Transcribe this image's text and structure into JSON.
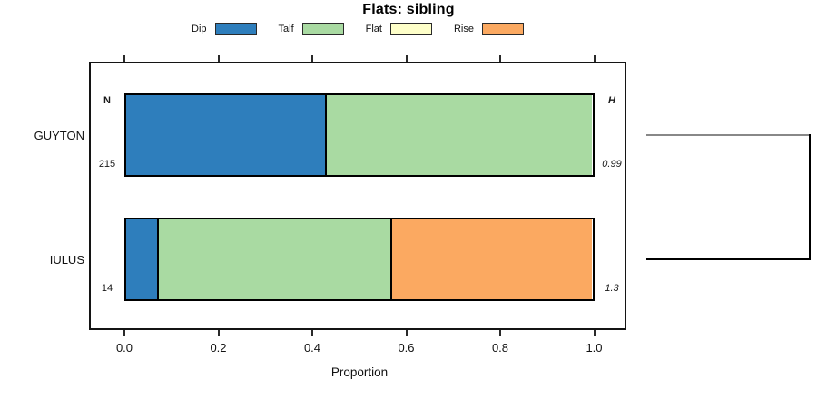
{
  "title": "Flats: sibling",
  "x_axis": {
    "label": "Proportion",
    "ticks": [
      "0.0",
      "0.2",
      "0.4",
      "0.6",
      "0.8",
      "1.0"
    ]
  },
  "left_headers": {
    "n_header": "N"
  },
  "right_headers": {
    "h_header": "H"
  },
  "chart_data": {
    "type": "bar",
    "orientation": "horizontal",
    "stacked": true,
    "title": "Flats: sibling",
    "categories": [
      "GUYTON",
      "IULUS"
    ],
    "series": [
      {
        "name": "Dip",
        "color": "#2e7ebc",
        "values": [
          0.43,
          0.07
        ]
      },
      {
        "name": "Talf",
        "color": "#a9daa2",
        "values": [
          0.57,
          0.5
        ]
      },
      {
        "name": "Flat",
        "color": "#feffc9",
        "values": [
          0.0,
          0.0
        ]
      },
      {
        "name": "Rise",
        "color": "#fba961",
        "values": [
          0.0,
          0.43
        ]
      }
    ],
    "n_header": "N",
    "h_header": "H",
    "n_values": [
      "215",
      "14"
    ],
    "h_values": [
      "0.99",
      "1.3"
    ],
    "xlabel": "Proportion",
    "xlim": [
      0,
      1
    ],
    "xticks": [
      0.0,
      0.2,
      0.4,
      0.6,
      0.8,
      1.0
    ],
    "grid": false,
    "legend_position": "top",
    "legend_items": [
      "Dip",
      "Talf",
      "Flat",
      "Rise"
    ],
    "dendrogram": {
      "leaves": [
        "GUYTON",
        "IULUS"
      ],
      "top_line_color": "#888888",
      "bottom_line_color": "#000000"
    }
  }
}
